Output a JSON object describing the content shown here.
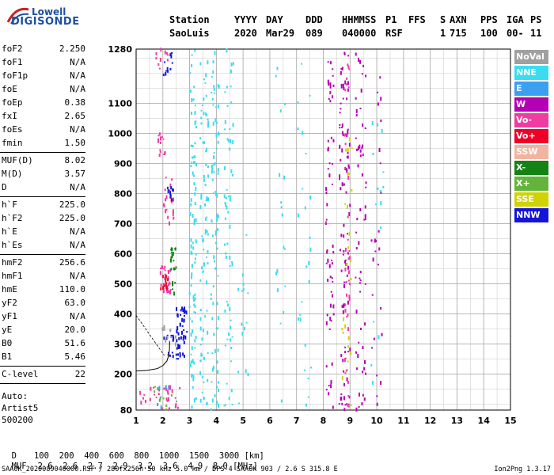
{
  "logo": {
    "line1": "Lowell",
    "line2": "DIGISONDE"
  },
  "header": {
    "labels": [
      "Station",
      "YYYY",
      "DAY",
      "DDD",
      "HHMMSS",
      "P1",
      "FFS",
      "S",
      "AXN",
      "PPS",
      "IGA",
      "PS"
    ],
    "values": [
      "SaoLuis",
      "2020",
      "Mar29",
      "089",
      "040000",
      "RSF",
      "",
      "1",
      "715",
      "100",
      "00-",
      "11"
    ]
  },
  "params_group1": [
    {
      "key": "foF2",
      "value": "2.250"
    },
    {
      "key": "foF1",
      "value": "N/A"
    },
    {
      "key": "foF1p",
      "value": "N/A"
    },
    {
      "key": "foE",
      "value": "N/A"
    },
    {
      "key": "foEp",
      "value": "0.38"
    },
    {
      "key": "fxI",
      "value": "2.65"
    },
    {
      "key": "foEs",
      "value": "N/A"
    },
    {
      "key": "fmin",
      "value": "1.50"
    }
  ],
  "params_group2": [
    {
      "key": "MUF(D)",
      "value": "8.02"
    },
    {
      "key": "M(D)",
      "value": "3.57"
    },
    {
      "key": "D",
      "value": "N/A"
    }
  ],
  "params_group3": [
    {
      "key": "h`F",
      "value": "225.0"
    },
    {
      "key": "h`F2",
      "value": "225.0"
    },
    {
      "key": "h`E",
      "value": "N/A"
    },
    {
      "key": "h`Es",
      "value": "N/A"
    }
  ],
  "params_group4": [
    {
      "key": "hmF2",
      "value": "256.6"
    },
    {
      "key": "hmF1",
      "value": "N/A"
    },
    {
      "key": "hmE",
      "value": "110.0"
    },
    {
      "key": "yF2",
      "value": "63.0"
    },
    {
      "key": "yF1",
      "value": "N/A"
    },
    {
      "key": "yE",
      "value": "20.0"
    },
    {
      "key": "B0",
      "value": "51.6"
    },
    {
      "key": "B1",
      "value": "5.46"
    }
  ],
  "params_group5": [
    {
      "key": "C-level",
      "value": "22"
    }
  ],
  "autoscale": {
    "line1": "Auto:",
    "line2": "Artist5",
    "line3": "500200"
  },
  "legend": [
    {
      "label": "NoVal",
      "color": "#a0a0a0"
    },
    {
      "label": "NNE",
      "color": "#3cdcf0"
    },
    {
      "label": "E",
      "color": "#3ca0f0"
    },
    {
      "label": "W",
      "color": "#b400b4"
    },
    {
      "label": "Vo-",
      "color": "#f03ca0"
    },
    {
      "label": "Vo+",
      "color": "#f00028"
    },
    {
      "label": "SSW",
      "color": "#f0b4a0"
    },
    {
      "label": "X-",
      "color": "#148214"
    },
    {
      "label": "X+",
      "color": "#64b43c"
    },
    {
      "label": "SSE",
      "color": "#d2d200"
    },
    {
      "label": "NNW",
      "color": "#1414dc"
    }
  ],
  "muf_table": {
    "d_label": "D",
    "d_values": "100  200  400  600  800  1000  1500  3000",
    "d_unit": "[km]",
    "muf_label": "MUF",
    "muf_values": "2.6  2.6  2.7  2.9  3.2  3.6  4.9  8.0",
    "muf_unit": "[MHz]"
  },
  "footer": {
    "left": "SAA0K_2020089040000.RSF / 280fx256h 50 kHz 5.0 km / DPS-4 SAA0K 903 / 2.6 S 315.8 E",
    "right": "Ion2Png 1.3.17"
  },
  "chart_data": {
    "type": "scatter",
    "xlabel": "",
    "ylabel": "",
    "xlim": [
      1,
      15
    ],
    "ylim": [
      80,
      1280
    ],
    "x_ticks": [
      1,
      2,
      3,
      4,
      5,
      6,
      7,
      8,
      9,
      10,
      11,
      12,
      13,
      14,
      15
    ],
    "y_ticks": [
      80,
      200,
      300,
      400,
      500,
      600,
      700,
      800,
      900,
      1000,
      1100,
      1280
    ],
    "x_minor_step": 0.5,
    "y_minor_step": 50,
    "grid": true,
    "profile_curve": {
      "label": "",
      "color": "#000000",
      "points": [
        [
          1.0,
          210
        ],
        [
          1.4,
          212
        ],
        [
          1.8,
          218
        ],
        [
          2.0,
          228
        ],
        [
          2.15,
          243
        ],
        [
          2.22,
          262
        ],
        [
          2.25,
          285
        ],
        [
          2.25,
          310
        ]
      ]
    },
    "echo_clusters": [
      {
        "dir": "NNE",
        "xmin": 3.0,
        "xmax": 3.25,
        "ymin": 80,
        "ymax": 1280,
        "n": 90
      },
      {
        "dir": "NNE",
        "xmin": 3.4,
        "xmax": 3.7,
        "ymin": 80,
        "ymax": 1280,
        "n": 80
      },
      {
        "dir": "NNE",
        "xmin": 3.8,
        "xmax": 4.1,
        "ymin": 80,
        "ymax": 1280,
        "n": 80
      },
      {
        "dir": "NNE",
        "xmin": 4.3,
        "xmax": 4.65,
        "ymin": 80,
        "ymax": 1280,
        "n": 60
      },
      {
        "dir": "NNE",
        "xmin": 4.8,
        "xmax": 5.2,
        "ymin": 80,
        "ymax": 700,
        "n": 15
      },
      {
        "dir": "NNE",
        "xmin": 6.2,
        "xmax": 6.6,
        "ymin": 100,
        "ymax": 1280,
        "n": 18
      },
      {
        "dir": "W",
        "xmin": 8.1,
        "xmax": 8.4,
        "ymin": 80,
        "ymax": 1280,
        "n": 60
      },
      {
        "dir": "W",
        "xmin": 8.6,
        "xmax": 9.0,
        "ymin": 80,
        "ymax": 1280,
        "n": 90
      },
      {
        "dir": "Vo-",
        "xmin": 8.8,
        "xmax": 9.0,
        "ymin": 80,
        "ymax": 1280,
        "n": 40
      },
      {
        "dir": "W",
        "xmin": 9.2,
        "xmax": 9.6,
        "ymin": 80,
        "ymax": 1280,
        "n": 60
      },
      {
        "dir": "SSE",
        "xmin": 8.7,
        "xmax": 9.1,
        "ymin": 80,
        "ymax": 1000,
        "n": 25
      },
      {
        "dir": "W",
        "xmin": 9.8,
        "xmax": 10.2,
        "ymin": 80,
        "ymax": 1200,
        "n": 25
      },
      {
        "dir": "NNE",
        "xmin": 9.8,
        "xmax": 10.3,
        "ymin": 80,
        "ymax": 1200,
        "n": 15
      },
      {
        "dir": "NNE",
        "xmin": 7.0,
        "xmax": 7.6,
        "ymin": 80,
        "ymax": 1280,
        "n": 25
      },
      {
        "dir": "NNW",
        "xmin": 2.5,
        "xmax": 2.9,
        "ymin": 250,
        "ymax": 420,
        "n": 45
      },
      {
        "dir": "Vo-",
        "xmin": 1.9,
        "xmax": 2.3,
        "ymin": 470,
        "ymax": 560,
        "n": 30
      },
      {
        "dir": "Vo+",
        "xmin": 1.9,
        "xmax": 2.2,
        "ymin": 480,
        "ymax": 530,
        "n": 12
      },
      {
        "dir": "X-",
        "xmin": 2.3,
        "xmax": 2.5,
        "ymin": 460,
        "ymax": 620,
        "n": 20
      },
      {
        "dir": "Vo-",
        "xmin": 2.0,
        "xmax": 2.4,
        "ymin": 700,
        "ymax": 860,
        "n": 22
      },
      {
        "dir": "NNW",
        "xmin": 2.1,
        "xmax": 2.4,
        "ymin": 760,
        "ymax": 820,
        "n": 10
      },
      {
        "dir": "Vo-",
        "xmin": 1.8,
        "xmax": 2.1,
        "ymin": 920,
        "ymax": 1000,
        "n": 14
      },
      {
        "dir": "NNW",
        "xmin": 1.8,
        "xmax": 2.4,
        "ymin": 1150,
        "ymax": 1280,
        "n": 12
      },
      {
        "dir": "Vo-",
        "xmin": 1.7,
        "xmax": 2.2,
        "ymin": 1200,
        "ymax": 1280,
        "n": 10
      },
      {
        "dir": "Vo-",
        "xmin": 1.1,
        "xmax": 2.7,
        "ymin": 80,
        "ymax": 160,
        "n": 30
      },
      {
        "dir": "X+",
        "xmin": 1.5,
        "xmax": 2.6,
        "ymin": 80,
        "ymax": 160,
        "n": 10
      },
      {
        "dir": "E",
        "xmin": 1.8,
        "xmax": 2.3,
        "ymin": 80,
        "ymax": 160,
        "n": 8
      },
      {
        "dir": "NNW",
        "xmin": 2.0,
        "xmax": 2.4,
        "ymin": 250,
        "ymax": 330,
        "n": 12
      },
      {
        "dir": "NoVal",
        "xmin": 1.9,
        "xmax": 2.5,
        "ymin": 280,
        "ymax": 360,
        "n": 10
      }
    ]
  }
}
